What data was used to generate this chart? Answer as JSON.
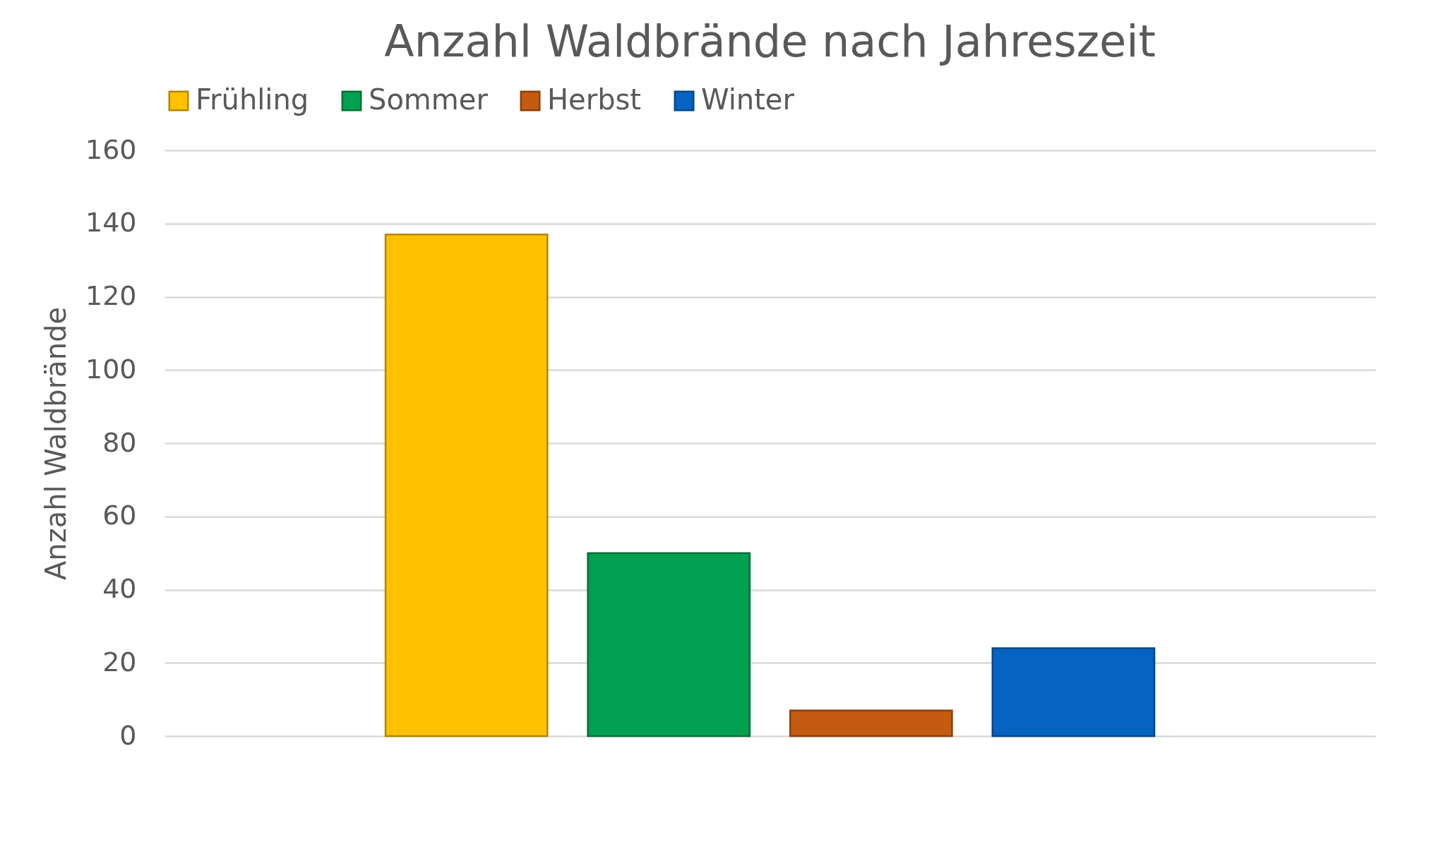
{
  "chart_data": {
    "type": "bar",
    "title": "Anzahl Waldbrände nach Jahreszeit",
    "ylabel": "Anzahl Waldbrände",
    "categories": [
      null
    ],
    "series": [
      {
        "name": "Frühling",
        "color": "#ffc000",
        "values": [
          137
        ]
      },
      {
        "name": "Sommer",
        "color": "#00a050",
        "values": [
          50
        ]
      },
      {
        "name": "Herbst",
        "color": "#c55a11",
        "values": [
          7
        ]
      },
      {
        "name": "Winter",
        "color": "#0563c1",
        "values": [
          24
        ]
      }
    ],
    "ylim": [
      0,
      160
    ],
    "yticks": [
      0,
      20,
      40,
      60,
      80,
      100,
      120,
      140,
      160
    ],
    "grid": "y",
    "legend": "top",
    "tick_labels": "y"
  }
}
